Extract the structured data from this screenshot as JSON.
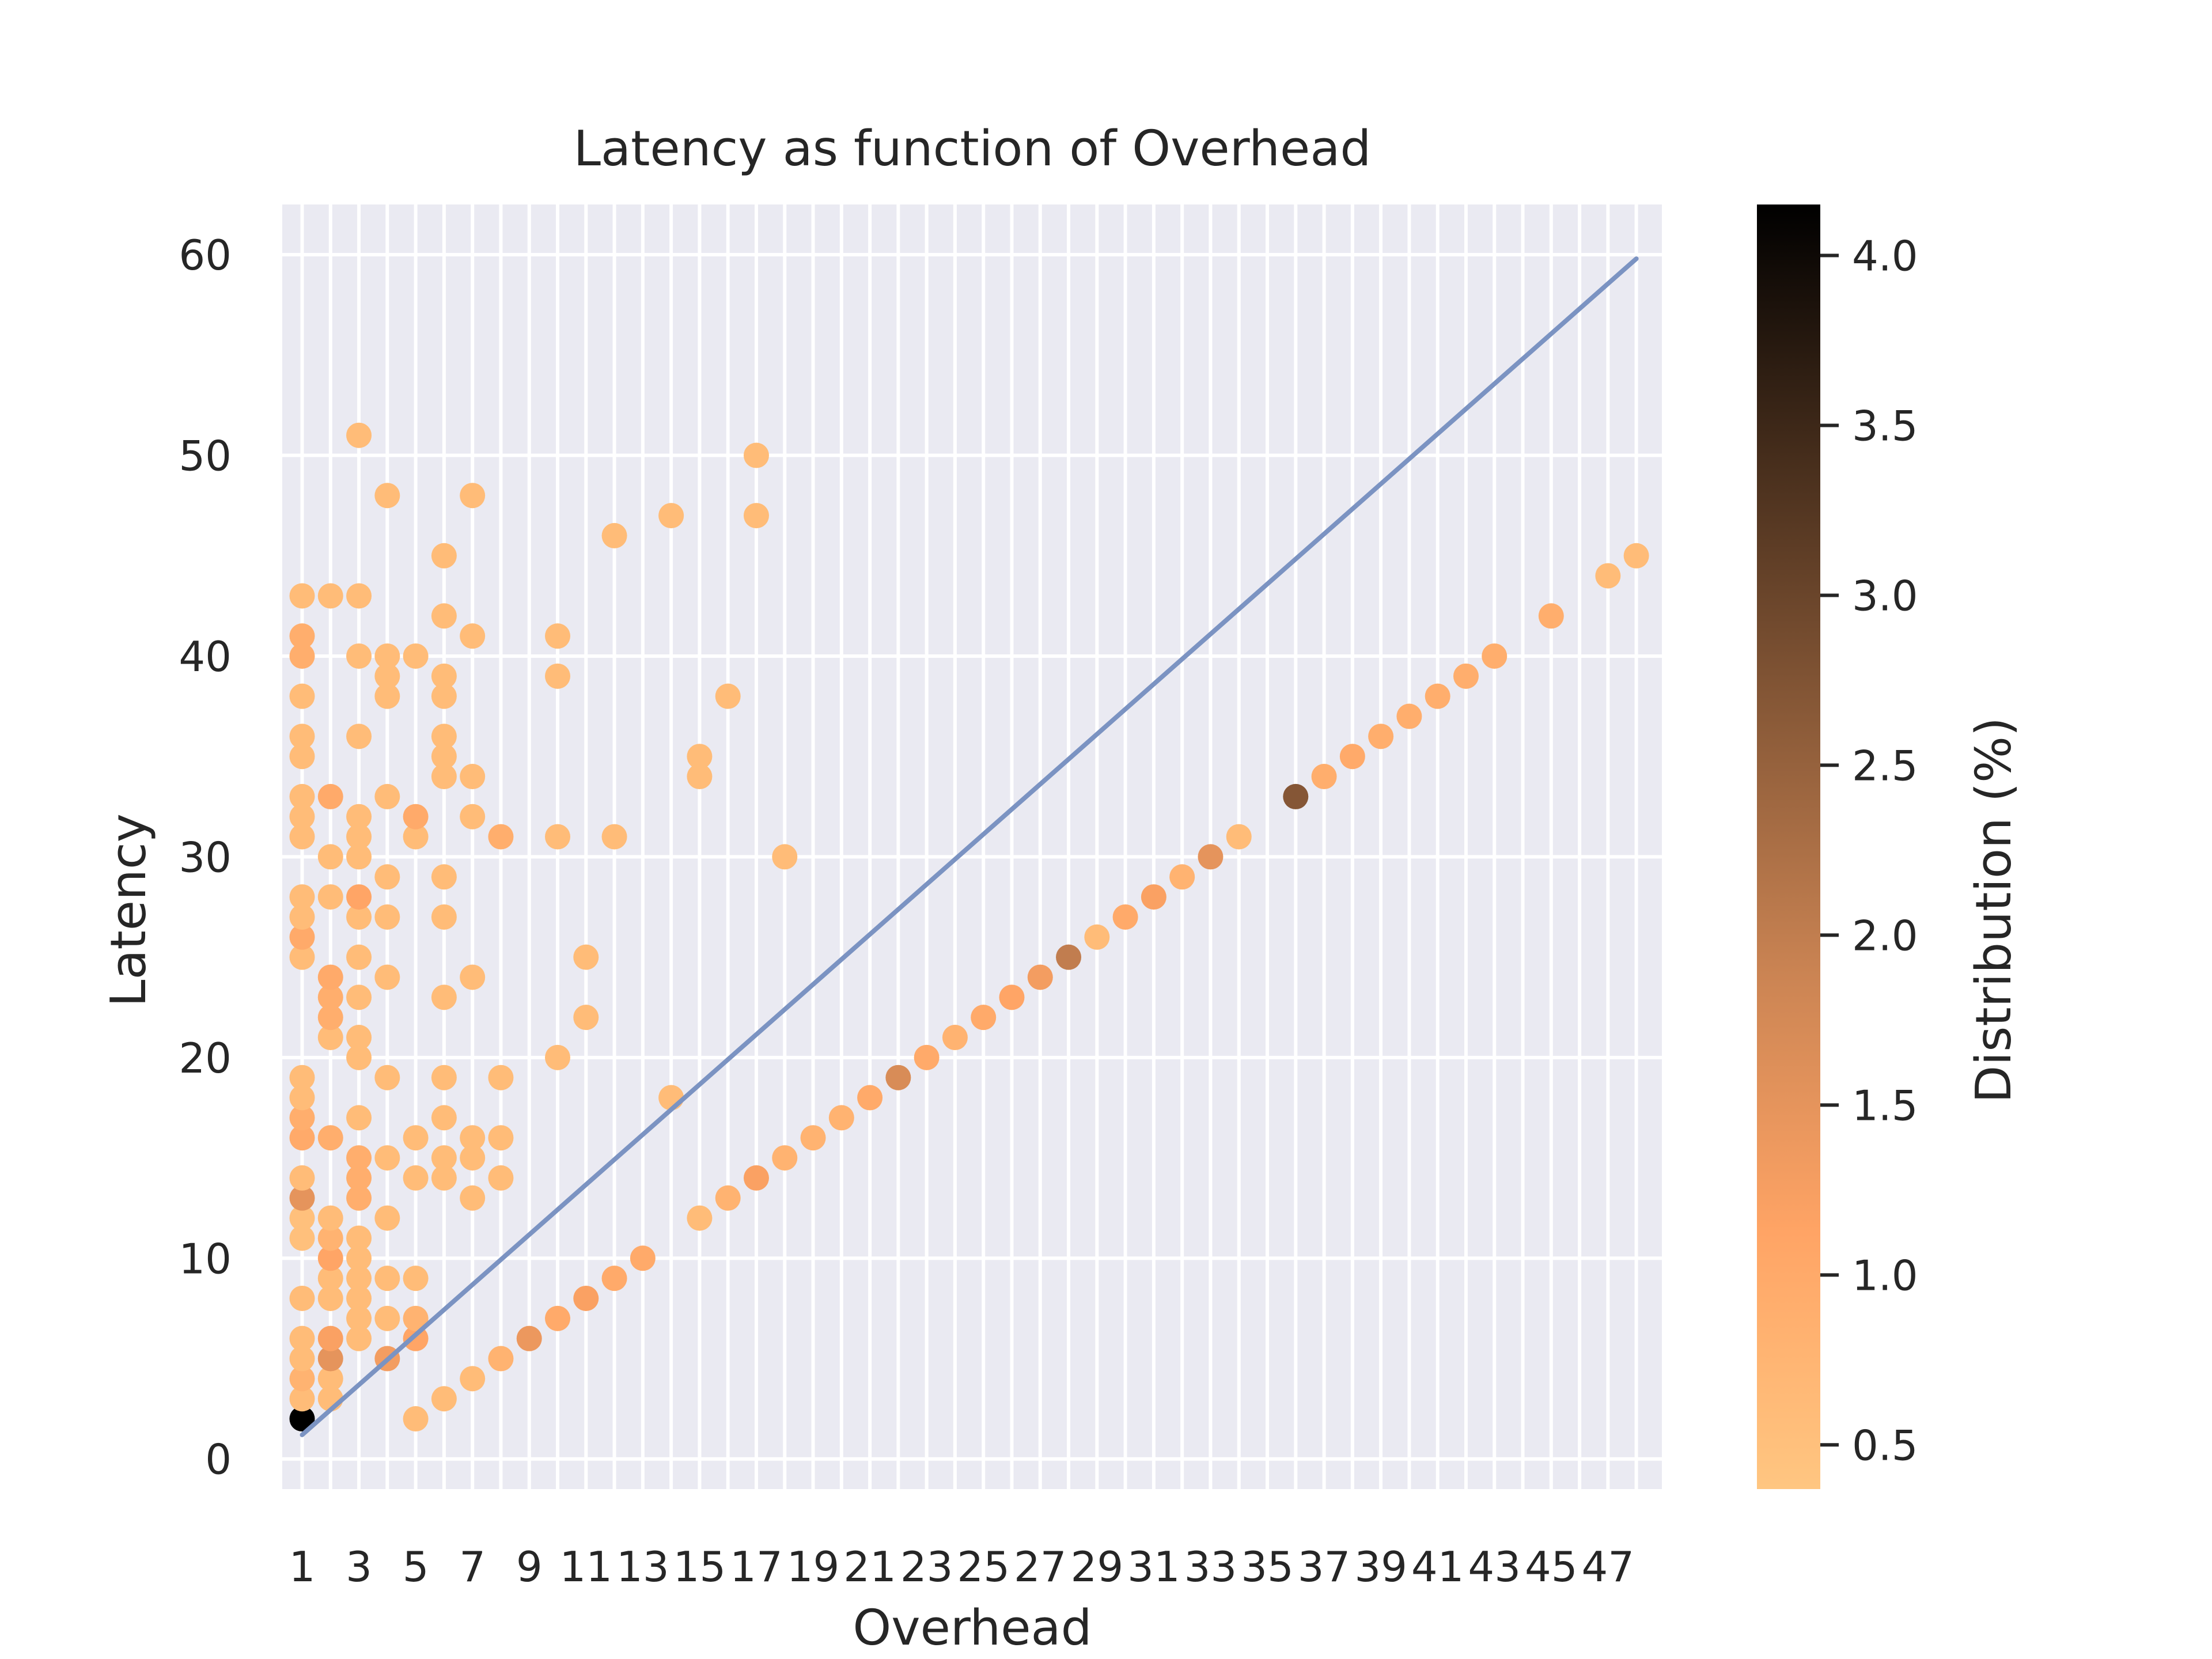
{
  "chart_data": {
    "type": "scatter",
    "title": "Latency as function of Overhead",
    "xlabel": "Overhead",
    "ylabel": "Latency",
    "xlim": [
      0.3,
      48.9
    ],
    "ylim": [
      -1.5,
      62.5
    ],
    "x_ticks": [
      1,
      3,
      5,
      7,
      9,
      11,
      13,
      15,
      17,
      19,
      21,
      23,
      25,
      27,
      29,
      31,
      33,
      35,
      37,
      39,
      41,
      43,
      45,
      47
    ],
    "x_tick_labels": [
      "1",
      "3",
      "5",
      "7",
      "9",
      "11",
      "13",
      "15",
      "17",
      "19",
      "21",
      "23",
      "25",
      "27",
      "29",
      "31",
      "33",
      "35",
      "37",
      "39",
      "41",
      "43",
      "45",
      "47"
    ],
    "x_minor_gridlines": [
      2,
      4,
      6,
      8,
      10,
      12,
      14,
      16,
      18,
      20,
      22,
      24,
      26,
      28,
      30,
      32,
      34,
      36,
      38,
      40,
      42,
      44,
      46,
      48
    ],
    "y_ticks": [
      0,
      10,
      20,
      30,
      40,
      50,
      60
    ],
    "y_tick_labels": [
      "0",
      "10",
      "20",
      "30",
      "40",
      "50",
      "60"
    ],
    "grid": true,
    "colorbar": {
      "label": "Distribution (%)",
      "range": [
        0.37,
        4.15
      ],
      "ticks": [
        0.5,
        1.0,
        1.5,
        2.0,
        2.5,
        3.0,
        3.5,
        4.0
      ],
      "tick_labels": [
        "0.5",
        "1.0",
        "1.5",
        "2.0",
        "2.5",
        "3.0",
        "3.5",
        "4.0"
      ],
      "colormap": [
        "#ffc681",
        "#ffa465",
        "#cb8453",
        "#8a5a38",
        "#472e1c",
        "#000000"
      ]
    },
    "line": {
      "x": [
        1,
        48
      ],
      "y": [
        1.2,
        59.8
      ],
      "color": "#7b93c2"
    },
    "points": [
      {
        "x": 1,
        "y": 2,
        "c": 4.15
      },
      {
        "x": 1,
        "y": 3,
        "c": 0.6
      },
      {
        "x": 1,
        "y": 4,
        "c": 0.8
      },
      {
        "x": 1,
        "y": 5,
        "c": 0.6
      },
      {
        "x": 1,
        "y": 6,
        "c": 0.6
      },
      {
        "x": 1,
        "y": 8,
        "c": 0.6
      },
      {
        "x": 1,
        "y": 11,
        "c": 0.5
      },
      {
        "x": 1,
        "y": 12,
        "c": 0.5
      },
      {
        "x": 1,
        "y": 13,
        "c": 1.5
      },
      {
        "x": 1,
        "y": 14,
        "c": 0.6
      },
      {
        "x": 1,
        "y": 16,
        "c": 1.0
      },
      {
        "x": 1,
        "y": 17,
        "c": 0.9
      },
      {
        "x": 1,
        "y": 18,
        "c": 0.6
      },
      {
        "x": 1,
        "y": 19,
        "c": 0.6
      },
      {
        "x": 1,
        "y": 25,
        "c": 0.6
      },
      {
        "x": 1,
        "y": 26,
        "c": 1.0
      },
      {
        "x": 1,
        "y": 27,
        "c": 0.6
      },
      {
        "x": 1,
        "y": 28,
        "c": 0.6
      },
      {
        "x": 1,
        "y": 31,
        "c": 0.6
      },
      {
        "x": 1,
        "y": 32,
        "c": 0.6
      },
      {
        "x": 1,
        "y": 33,
        "c": 0.6
      },
      {
        "x": 1,
        "y": 35,
        "c": 0.6
      },
      {
        "x": 1,
        "y": 36,
        "c": 0.6
      },
      {
        "x": 1,
        "y": 38,
        "c": 0.6
      },
      {
        "x": 1,
        "y": 40,
        "c": 0.9
      },
      {
        "x": 1,
        "y": 41,
        "c": 0.9
      },
      {
        "x": 1,
        "y": 43,
        "c": 0.6
      },
      {
        "x": 2,
        "y": 3,
        "c": 0.6
      },
      {
        "x": 2,
        "y": 4,
        "c": 0.6
      },
      {
        "x": 2,
        "y": 5,
        "c": 1.5
      },
      {
        "x": 2,
        "y": 6,
        "c": 1.2
      },
      {
        "x": 2,
        "y": 8,
        "c": 0.6
      },
      {
        "x": 2,
        "y": 9,
        "c": 0.6
      },
      {
        "x": 2,
        "y": 10,
        "c": 1.1
      },
      {
        "x": 2,
        "y": 11,
        "c": 0.8
      },
      {
        "x": 2,
        "y": 12,
        "c": 0.6
      },
      {
        "x": 2,
        "y": 16,
        "c": 0.9
      },
      {
        "x": 2,
        "y": 21,
        "c": 0.6
      },
      {
        "x": 2,
        "y": 22,
        "c": 0.9
      },
      {
        "x": 2,
        "y": 23,
        "c": 0.9
      },
      {
        "x": 2,
        "y": 24,
        "c": 1.0
      },
      {
        "x": 2,
        "y": 28,
        "c": 0.6
      },
      {
        "x": 2,
        "y": 30,
        "c": 0.6
      },
      {
        "x": 2,
        "y": 33,
        "c": 1.0
      },
      {
        "x": 2,
        "y": 43,
        "c": 0.6
      },
      {
        "x": 3,
        "y": 6,
        "c": 0.6
      },
      {
        "x": 3,
        "y": 7,
        "c": 0.6
      },
      {
        "x": 3,
        "y": 8,
        "c": 0.6
      },
      {
        "x": 3,
        "y": 9,
        "c": 0.6
      },
      {
        "x": 3,
        "y": 10,
        "c": 0.6
      },
      {
        "x": 3,
        "y": 11,
        "c": 0.6
      },
      {
        "x": 3,
        "y": 13,
        "c": 0.9
      },
      {
        "x": 3,
        "y": 14,
        "c": 0.9
      },
      {
        "x": 3,
        "y": 15,
        "c": 0.9
      },
      {
        "x": 3,
        "y": 17,
        "c": 0.6
      },
      {
        "x": 3,
        "y": 20,
        "c": 0.6
      },
      {
        "x": 3,
        "y": 21,
        "c": 0.6
      },
      {
        "x": 3,
        "y": 23,
        "c": 0.6
      },
      {
        "x": 3,
        "y": 25,
        "c": 0.6
      },
      {
        "x": 3,
        "y": 27,
        "c": 0.6
      },
      {
        "x": 3,
        "y": 28,
        "c": 1.1
      },
      {
        "x": 3,
        "y": 30,
        "c": 0.6
      },
      {
        "x": 3,
        "y": 31,
        "c": 0.6
      },
      {
        "x": 3,
        "y": 32,
        "c": 0.6
      },
      {
        "x": 3,
        "y": 36,
        "c": 0.6
      },
      {
        "x": 3,
        "y": 40,
        "c": 0.6
      },
      {
        "x": 3,
        "y": 43,
        "c": 0.6
      },
      {
        "x": 3,
        "y": 51,
        "c": 0.6
      },
      {
        "x": 4,
        "y": 5,
        "c": 1.3
      },
      {
        "x": 4,
        "y": 7,
        "c": 0.6
      },
      {
        "x": 4,
        "y": 9,
        "c": 0.6
      },
      {
        "x": 4,
        "y": 12,
        "c": 0.6
      },
      {
        "x": 4,
        "y": 15,
        "c": 0.6
      },
      {
        "x": 4,
        "y": 19,
        "c": 0.6
      },
      {
        "x": 4,
        "y": 24,
        "c": 0.6
      },
      {
        "x": 4,
        "y": 27,
        "c": 0.6
      },
      {
        "x": 4,
        "y": 29,
        "c": 0.6
      },
      {
        "x": 4,
        "y": 33,
        "c": 0.6
      },
      {
        "x": 4,
        "y": 38,
        "c": 0.6
      },
      {
        "x": 4,
        "y": 39,
        "c": 0.6
      },
      {
        "x": 4,
        "y": 40,
        "c": 0.6
      },
      {
        "x": 4,
        "y": 48,
        "c": 0.6
      },
      {
        "x": 5,
        "y": 2,
        "c": 0.6
      },
      {
        "x": 5,
        "y": 6,
        "c": 1.1
      },
      {
        "x": 5,
        "y": 7,
        "c": 0.8
      },
      {
        "x": 5,
        "y": 9,
        "c": 0.6
      },
      {
        "x": 5,
        "y": 14,
        "c": 0.6
      },
      {
        "x": 5,
        "y": 16,
        "c": 0.6
      },
      {
        "x": 5,
        "y": 31,
        "c": 0.6
      },
      {
        "x": 5,
        "y": 32,
        "c": 1.0
      },
      {
        "x": 5,
        "y": 40,
        "c": 0.6
      },
      {
        "x": 6,
        "y": 3,
        "c": 0.6
      },
      {
        "x": 6,
        "y": 14,
        "c": 0.6
      },
      {
        "x": 6,
        "y": 15,
        "c": 0.6
      },
      {
        "x": 6,
        "y": 17,
        "c": 0.6
      },
      {
        "x": 6,
        "y": 19,
        "c": 0.6
      },
      {
        "x": 6,
        "y": 23,
        "c": 0.6
      },
      {
        "x": 6,
        "y": 27,
        "c": 0.6
      },
      {
        "x": 6,
        "y": 29,
        "c": 0.6
      },
      {
        "x": 6,
        "y": 34,
        "c": 0.6
      },
      {
        "x": 6,
        "y": 35,
        "c": 0.6
      },
      {
        "x": 6,
        "y": 36,
        "c": 0.6
      },
      {
        "x": 6,
        "y": 38,
        "c": 0.6
      },
      {
        "x": 6,
        "y": 39,
        "c": 0.6
      },
      {
        "x": 6,
        "y": 42,
        "c": 0.6
      },
      {
        "x": 6,
        "y": 45,
        "c": 0.6
      },
      {
        "x": 7,
        "y": 4,
        "c": 0.6
      },
      {
        "x": 7,
        "y": 13,
        "c": 0.6
      },
      {
        "x": 7,
        "y": 15,
        "c": 0.6
      },
      {
        "x": 7,
        "y": 16,
        "c": 0.6
      },
      {
        "x": 7,
        "y": 24,
        "c": 0.6
      },
      {
        "x": 7,
        "y": 32,
        "c": 0.6
      },
      {
        "x": 7,
        "y": 34,
        "c": 0.6
      },
      {
        "x": 7,
        "y": 41,
        "c": 0.6
      },
      {
        "x": 7,
        "y": 48,
        "c": 0.6
      },
      {
        "x": 8,
        "y": 5,
        "c": 0.8
      },
      {
        "x": 8,
        "y": 14,
        "c": 0.6
      },
      {
        "x": 8,
        "y": 16,
        "c": 0.6
      },
      {
        "x": 8,
        "y": 19,
        "c": 0.6
      },
      {
        "x": 8,
        "y": 31,
        "c": 0.9
      },
      {
        "x": 9,
        "y": 6,
        "c": 1.4
      },
      {
        "x": 10,
        "y": 7,
        "c": 1.0
      },
      {
        "x": 10,
        "y": 20,
        "c": 0.6
      },
      {
        "x": 10,
        "y": 31,
        "c": 0.6
      },
      {
        "x": 10,
        "y": 39,
        "c": 0.6
      },
      {
        "x": 10,
        "y": 41,
        "c": 0.6
      },
      {
        "x": 11,
        "y": 8,
        "c": 1.2
      },
      {
        "x": 11,
        "y": 22,
        "c": 0.6
      },
      {
        "x": 11,
        "y": 25,
        "c": 0.6
      },
      {
        "x": 12,
        "y": 9,
        "c": 1.0
      },
      {
        "x": 12,
        "y": 31,
        "c": 0.6
      },
      {
        "x": 12,
        "y": 46,
        "c": 0.6
      },
      {
        "x": 13,
        "y": 10,
        "c": 1.0
      },
      {
        "x": 14,
        "y": 18,
        "c": 0.6
      },
      {
        "x": 14,
        "y": 47,
        "c": 0.6
      },
      {
        "x": 15,
        "y": 12,
        "c": 0.6
      },
      {
        "x": 15,
        "y": 34,
        "c": 0.6
      },
      {
        "x": 15,
        "y": 35,
        "c": 0.6
      },
      {
        "x": 16,
        "y": 13,
        "c": 0.8
      },
      {
        "x": 16,
        "y": 38,
        "c": 0.6
      },
      {
        "x": 17,
        "y": 14,
        "c": 1.2
      },
      {
        "x": 17,
        "y": 47,
        "c": 0.6
      },
      {
        "x": 17,
        "y": 50,
        "c": 0.6
      },
      {
        "x": 18,
        "y": 15,
        "c": 0.8
      },
      {
        "x": 18,
        "y": 30,
        "c": 0.6
      },
      {
        "x": 19,
        "y": 16,
        "c": 0.8
      },
      {
        "x": 20,
        "y": 17,
        "c": 0.8
      },
      {
        "x": 21,
        "y": 18,
        "c": 1.0
      },
      {
        "x": 22,
        "y": 19,
        "c": 1.7
      },
      {
        "x": 23,
        "y": 20,
        "c": 1.0
      },
      {
        "x": 24,
        "y": 21,
        "c": 0.8
      },
      {
        "x": 25,
        "y": 22,
        "c": 1.0
      },
      {
        "x": 26,
        "y": 23,
        "c": 1.1
      },
      {
        "x": 27,
        "y": 24,
        "c": 1.3
      },
      {
        "x": 28,
        "y": 25,
        "c": 2.0
      },
      {
        "x": 29,
        "y": 26,
        "c": 0.6
      },
      {
        "x": 30,
        "y": 27,
        "c": 1.0
      },
      {
        "x": 31,
        "y": 28,
        "c": 1.2
      },
      {
        "x": 32,
        "y": 29,
        "c": 0.8
      },
      {
        "x": 33,
        "y": 30,
        "c": 1.5
      },
      {
        "x": 34,
        "y": 31,
        "c": 0.6
      },
      {
        "x": 36,
        "y": 33,
        "c": 2.7
      },
      {
        "x": 37,
        "y": 34,
        "c": 0.9
      },
      {
        "x": 38,
        "y": 35,
        "c": 1.0
      },
      {
        "x": 39,
        "y": 36,
        "c": 0.9
      },
      {
        "x": 40,
        "y": 37,
        "c": 0.9
      },
      {
        "x": 41,
        "y": 38,
        "c": 0.9
      },
      {
        "x": 42,
        "y": 39,
        "c": 0.9
      },
      {
        "x": 43,
        "y": 40,
        "c": 0.9
      },
      {
        "x": 45,
        "y": 42,
        "c": 0.9
      },
      {
        "x": 47,
        "y": 44,
        "c": 0.6
      },
      {
        "x": 48,
        "y": 45,
        "c": 0.6
      }
    ]
  }
}
